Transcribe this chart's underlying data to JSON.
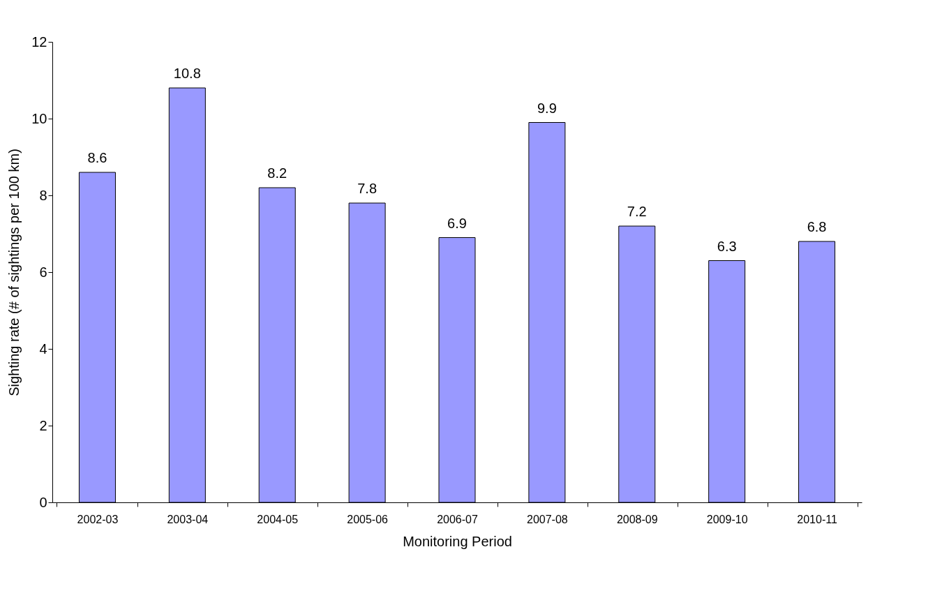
{
  "chart_data": {
    "type": "bar",
    "xlabel": "Monitoring Period",
    "ylabel": "Sighting rate (# of sightings per 100 km)",
    "categories": [
      "2002-03",
      "2003-04",
      "2004-05",
      "2005-06",
      "2006-07",
      "2007-08",
      "2008-09",
      "2009-10",
      "2010-11"
    ],
    "values": [
      8.6,
      10.8,
      8.2,
      7.8,
      6.9,
      9.9,
      7.2,
      6.3,
      6.8
    ],
    "color": "#9999ff",
    "ylim": [
      0,
      12
    ],
    "yticks": [
      0,
      2,
      4,
      6,
      8,
      10,
      12
    ],
    "data_labels": true,
    "grid": false
  }
}
